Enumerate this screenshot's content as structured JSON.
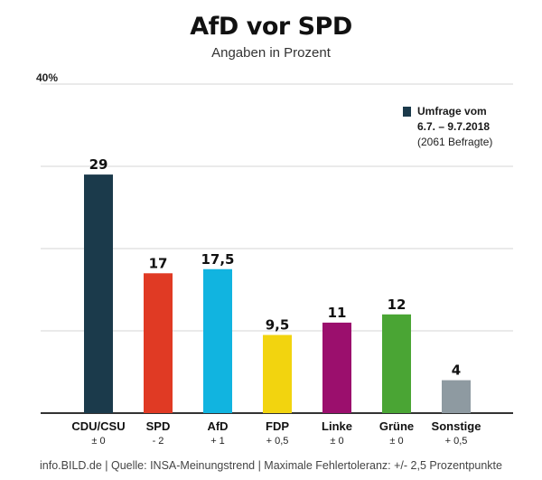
{
  "chart_data": {
    "type": "bar",
    "title": "AfD vor SPD",
    "subtitle": "Angaben in Prozent",
    "ylim": [
      0,
      40
    ],
    "y_tick_label": "40%",
    "grid": true,
    "categories": [
      "CDU/CSU",
      "SPD",
      "AfD",
      "FDP",
      "Linke",
      "Grüne",
      "Sonstige"
    ],
    "values": [
      29,
      17,
      17.5,
      9.5,
      11,
      12,
      4
    ],
    "value_labels": [
      "29",
      "17",
      "17,5",
      "9,5",
      "11",
      "12",
      "4"
    ],
    "changes": [
      "± 0",
      "- 2",
      "+ 1",
      "+ 0,5",
      "± 0",
      "± 0",
      "+ 0,5"
    ],
    "colors": [
      "#1b3a4b",
      "#e03a24",
      "#11b4e0",
      "#f2d40f",
      "#9b0f6d",
      "#4aa534",
      "#8e9aa1"
    ],
    "legend": {
      "placement": "top-right",
      "line1": "Umfrage vom",
      "line2": "6.7. – 9.7.2018",
      "line3": "(2061 Befragte)",
      "color": "#1b3a4b"
    }
  },
  "footer": "info.BILD.de | Quelle: INSA-Meinungstrend | Maximale Fehlertoleranz: +/- 2,5 Prozentpunkte"
}
